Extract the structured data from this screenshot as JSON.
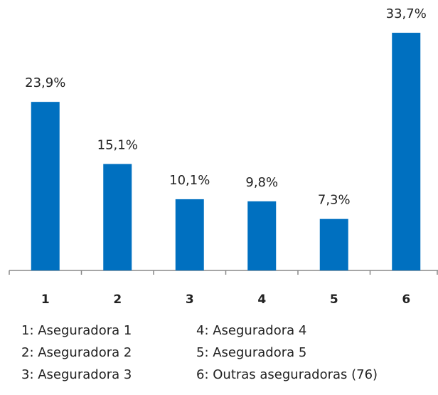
{
  "chart_data": {
    "type": "bar",
    "categories": [
      "1",
      "2",
      "3",
      "4",
      "5",
      "6"
    ],
    "values": [
      23.9,
      15.1,
      10.1,
      9.8,
      7.3,
      33.7
    ],
    "value_labels": [
      "23,9%",
      "15,1%",
      "10,1%",
      "9,8%",
      "7,3%",
      "33,7%"
    ],
    "color": "#0070c0",
    "legend": [
      "1: Aseguradora 1",
      "2: Aseguradora 2",
      "3: Aseguradora 3",
      "4: Aseguradora 4",
      "5: Aseguradora 5",
      "6: Outras aseguradoras (76)"
    ]
  }
}
